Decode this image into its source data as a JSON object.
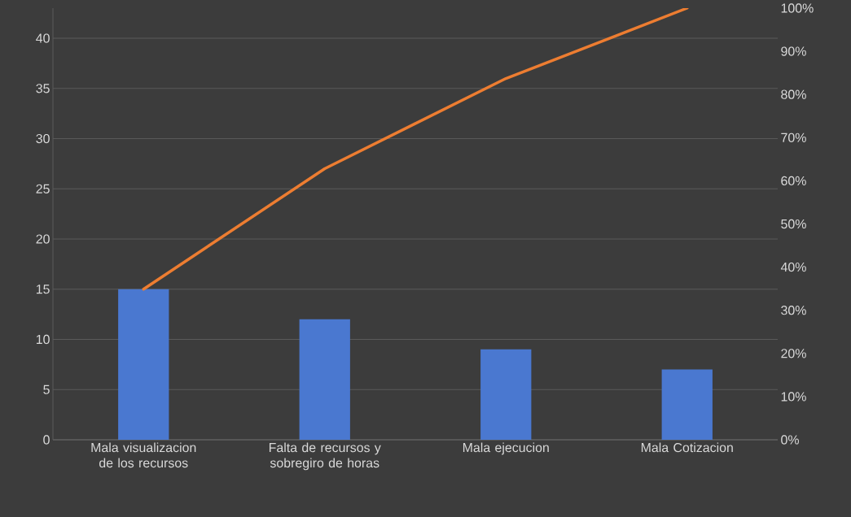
{
  "chart_data": {
    "type": "bar",
    "categories": [
      "Mala visualizacion de los recursos",
      "Falta de recursos y sobregiro de horas",
      "Mala ejecucion",
      "Mala Cotizacion"
    ],
    "series": [
      {
        "color": "#4a78d0",
        "values": [
          15,
          12,
          9,
          7
        ]
      },
      {
        "type": "line",
        "axis": "y2",
        "color": "#ed7d31",
        "values": [
          34.9,
          62.8,
          83.7,
          100
        ]
      }
    ],
    "ylim": [
      0,
      43
    ],
    "yticks": [
      0,
      5,
      10,
      15,
      20,
      25,
      30,
      35,
      40
    ],
    "y2lim": [
      0,
      100
    ],
    "y2ticks": [
      {
        "value": 0,
        "label": "0%"
      },
      {
        "value": 10,
        "label": "10%"
      },
      {
        "value": 20,
        "label": "20%"
      },
      {
        "value": 30,
        "label": "30%"
      },
      {
        "value": 40,
        "label": "40%"
      },
      {
        "value": 50,
        "label": "50%"
      },
      {
        "value": 60,
        "label": "60%"
      },
      {
        "value": 70,
        "label": "70%"
      },
      {
        "value": 80,
        "label": "80%"
      },
      {
        "value": 90,
        "label": "90%"
      },
      {
        "value": 100,
        "label": "100%"
      }
    ],
    "grid": "y",
    "marker": "none"
  }
}
